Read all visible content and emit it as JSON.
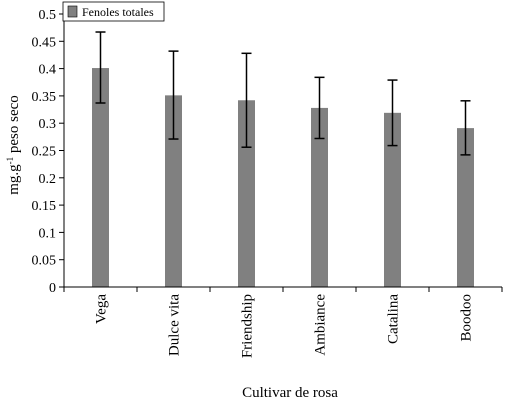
{
  "chart_data": {
    "type": "bar",
    "title": "",
    "xlabel": "Cultivar de rosa",
    "ylabel": "mg.g",
    "ylabel_sup": "-1",
    "ylabel_rest": " peso seco",
    "categories": [
      "Vega",
      "Dulce vita",
      "Friendship",
      "Ambiance",
      "Catalina",
      "Boodoo"
    ],
    "series": [
      {
        "name": "Fenoles totales",
        "values": [
          0.401,
          0.351,
          0.342,
          0.328,
          0.319,
          0.291
        ],
        "error_low": [
          0.337,
          0.271,
          0.256,
          0.272,
          0.259,
          0.242
        ],
        "error_high": [
          0.467,
          0.432,
          0.428,
          0.384,
          0.379,
          0.341
        ]
      }
    ],
    "ylim": [
      0,
      0.5
    ],
    "yticks": [
      "0",
      "0.05",
      "0.1",
      "0.15",
      "0.2",
      "0.25",
      "0.3",
      "0.35",
      "0.4",
      "0.45",
      "0.5"
    ],
    "grid": false,
    "legend_position": "top-left",
    "colors": {
      "bar": "#808080",
      "axis": "#000000",
      "error_bar": "#000000"
    }
  }
}
